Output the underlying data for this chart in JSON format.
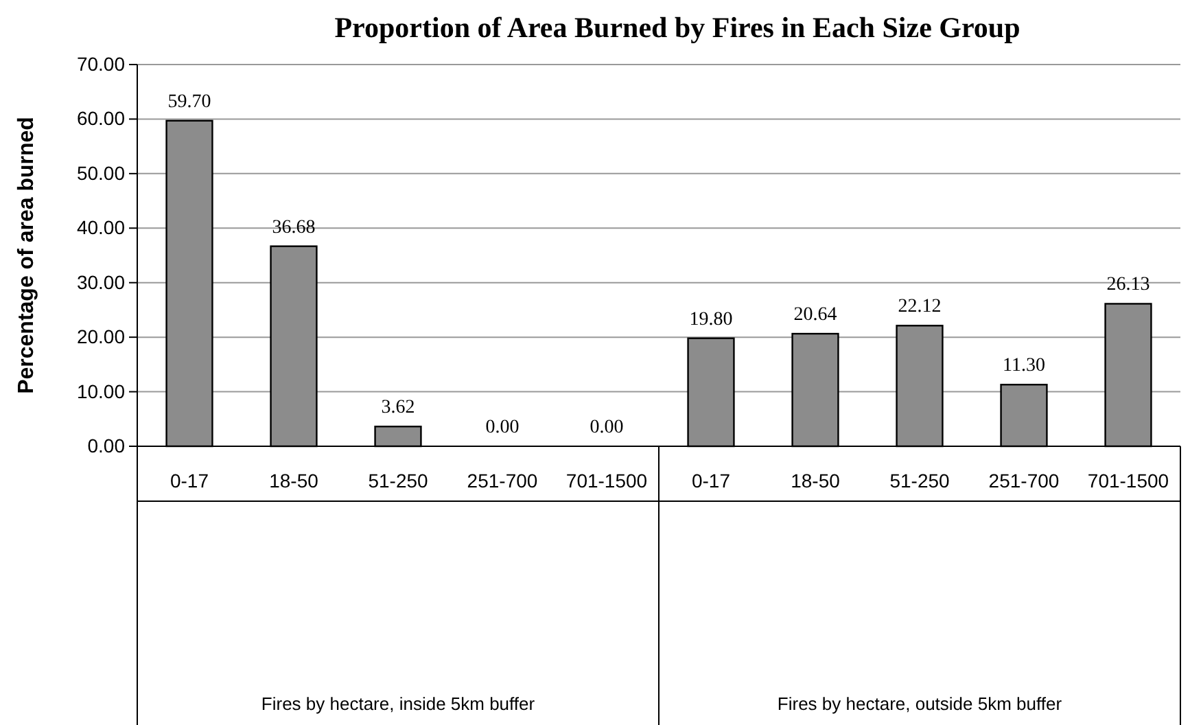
{
  "chart_data": {
    "type": "bar",
    "title": "Proportion of Area Burned by Fires in Each Size Group",
    "ylabel": "Percentage of area burned",
    "categories": [
      "0-17",
      "18-50",
      "51-250",
      "251-700",
      "701-1500",
      "0-17",
      "18-50",
      "51-250",
      "251-700",
      "701-1500"
    ],
    "values": [
      59.7,
      36.68,
      3.62,
      0.0,
      0.0,
      19.8,
      20.64,
      22.12,
      11.3,
      26.13
    ],
    "value_labels": [
      "59.70",
      "36.68",
      "3.62",
      "0.00",
      "0.00",
      "19.80",
      "20.64",
      "22.12",
      "11.30",
      "26.13"
    ],
    "color": "#8c8c8c",
    "ylim": [
      0,
      70
    ],
    "yticks": [
      {
        "value": 0,
        "label": "0.00"
      },
      {
        "value": 10,
        "label": "10.00"
      },
      {
        "value": 20,
        "label": "20.00"
      },
      {
        "value": 30,
        "label": "30.00"
      },
      {
        "value": 40,
        "label": "40.00"
      },
      {
        "value": 50,
        "label": "50.00"
      },
      {
        "value": 60,
        "label": "60.00"
      },
      {
        "value": 70,
        "label": "70.00"
      }
    ],
    "grid": "y",
    "annotations": [
      "Fires by hectare, inside 5km buffer",
      "Fires by hectare, outside 5km buffer"
    ]
  }
}
